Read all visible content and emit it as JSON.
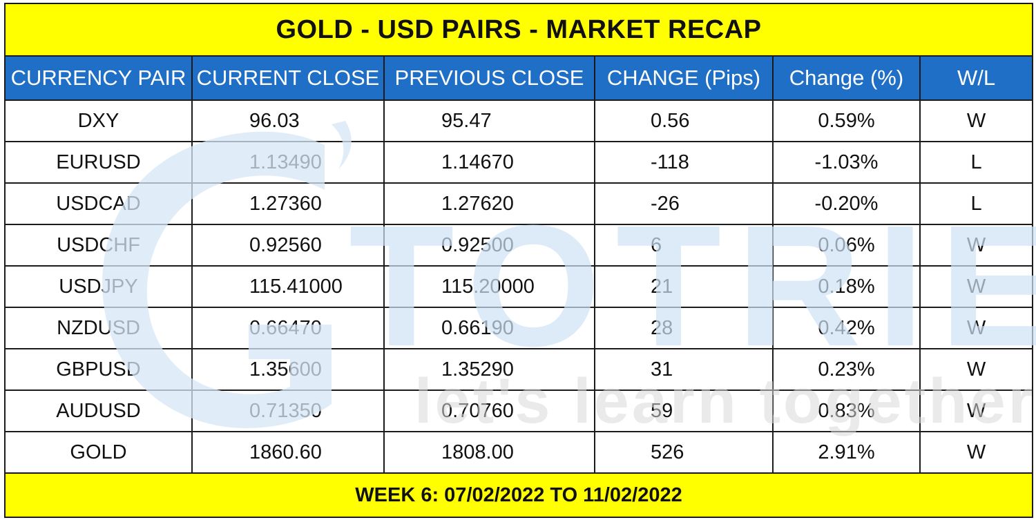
{
  "title": "GOLD - USD PAIRS - MARKET RECAP",
  "columns": [
    "CURRENCY PAIR",
    "CURRENT CLOSE",
    "PREVIOUS CLOSE",
    "CHANGE (Pips)",
    "Change (%)",
    "W/L"
  ],
  "rows": [
    [
      "DXY",
      "96.03",
      "95.47",
      "0.56",
      "0.59%",
      "W"
    ],
    [
      "EURUSD",
      "1.13490",
      "1.14670",
      "-118",
      "-1.03%",
      "L"
    ],
    [
      "USDCAD",
      "1.27360",
      "1.27620",
      "-26",
      "-0.20%",
      "L"
    ],
    [
      "USDCHF",
      "0.92560",
      "0.92500",
      "6",
      "0.06%",
      "W"
    ],
    [
      "USDJPY",
      "115.41000",
      "115.20000",
      "21",
      "0.18%",
      "W"
    ],
    [
      "NZDUSD",
      "0.66470",
      "0.66190",
      "28",
      "0.42%",
      "W"
    ],
    [
      "GBPUSD",
      "1.35600",
      "1.35290",
      "31",
      "0.23%",
      "W"
    ],
    [
      "AUDUSD",
      "0.71350",
      "0.70760",
      "59",
      "0.83%",
      "W"
    ],
    [
      "GOLD",
      "1860.60",
      "1808.00",
      "526",
      "2.91%",
      "W"
    ]
  ],
  "footer": "WEEK 6: 07/02/2022 TO 11/02/2022",
  "watermark": {
    "brand": "TOTRIEU",
    "tagline": "let's learn together"
  },
  "colors": {
    "title_bg": "#ffff00",
    "header_bg": "#1f6fc6",
    "header_text": "#ffffff",
    "footer_bg": "#ffff00",
    "watermark_blue": "#cfe3f6",
    "watermark_gray": "#e6e6e6"
  }
}
